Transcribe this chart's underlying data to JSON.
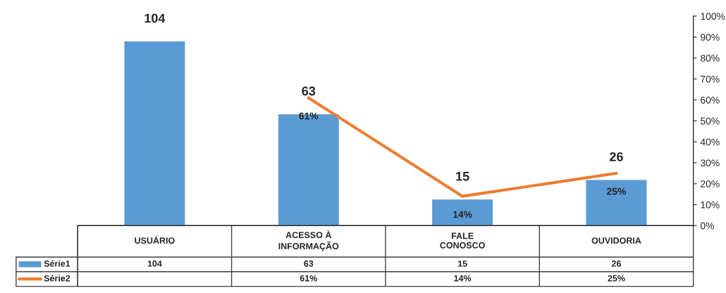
{
  "chart_data": {
    "type": "bar",
    "categories": [
      "USUÁRIO",
      "ACESSO À\nINFORMAÇÃO",
      "FALE\nCONOSCO",
      "OUVIDORIA"
    ],
    "series": [
      {
        "name": "Série1",
        "color": "#5b9bd5",
        "values": [
          104,
          63,
          15,
          26
        ],
        "value_labels": [
          "104",
          "63",
          "15",
          "26"
        ]
      },
      {
        "name": "Série2",
        "type": "line",
        "axis": "y2",
        "color": "#ed7d31",
        "values": [
          null,
          61,
          14,
          25
        ],
        "value_labels": [
          null,
          "61%",
          "14%",
          "25%"
        ]
      }
    ],
    "y2lim": [
      0,
      100
    ],
    "y2ticks": [
      {
        "value": 0,
        "label": "0%"
      },
      {
        "value": 10,
        "label": "10%"
      },
      {
        "value": 20,
        "label": "20%"
      },
      {
        "value": 30,
        "label": "30%"
      },
      {
        "value": 40,
        "label": "40%"
      },
      {
        "value": 50,
        "label": "50%"
      },
      {
        "value": 60,
        "label": "60%"
      },
      {
        "value": 70,
        "label": "70%"
      },
      {
        "value": 80,
        "label": "80%"
      },
      {
        "value": 90,
        "label": "90%"
      },
      {
        "value": 100,
        "label": "100%"
      }
    ],
    "tick_labels": "y2",
    "legend": "bottom left",
    "marker": "none",
    "line_style": "solid"
  }
}
